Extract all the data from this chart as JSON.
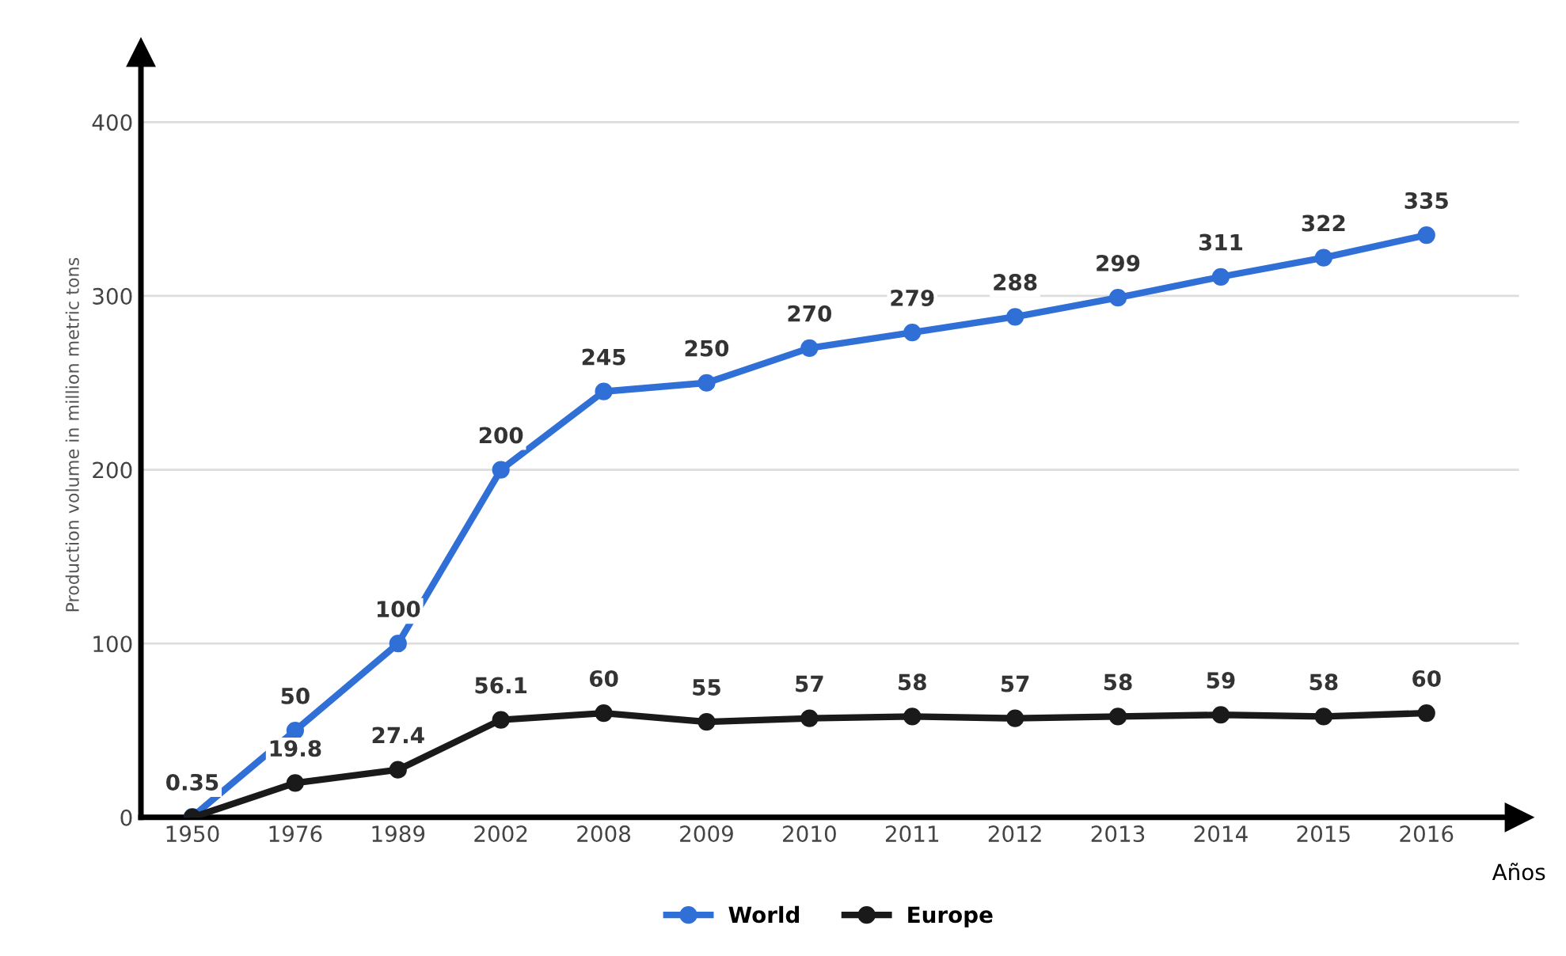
{
  "chart_data": {
    "type": "line",
    "xlabel": "Años",
    "ylabel": "Production volume in million metric tons",
    "categories": [
      "1950",
      "1976",
      "1989",
      "2002",
      "2008",
      "2009",
      "2010",
      "2011",
      "2012",
      "2013",
      "2014",
      "2015",
      "2016"
    ],
    "series": [
      {
        "name": "World",
        "color": "#2f6fd6",
        "values": [
          0.35,
          50,
          100,
          200,
          245,
          250,
          270,
          279,
          288,
          299,
          311,
          322,
          335
        ],
        "value_labels": [
          "0.35",
          "50",
          "100",
          "200",
          "245",
          "250",
          "270",
          "279",
          "288",
          "299",
          "311",
          "322",
          "335"
        ]
      },
      {
        "name": "Europe",
        "color": "#1a1a1a",
        "values": [
          0,
          19.8,
          27.4,
          56.1,
          60,
          55,
          57,
          58,
          57,
          58,
          59,
          58,
          60
        ],
        "value_labels": [
          null,
          "19.8",
          "27.4",
          "56.1",
          "60",
          "55",
          "57",
          "58",
          "57",
          "58",
          "59",
          "58",
          "60"
        ]
      }
    ],
    "ylim": [
      0,
      440
    ],
    "yticks": [
      0,
      100,
      200,
      300,
      400
    ],
    "grid": "y",
    "legend": "bottom",
    "marker": "circle",
    "line_style": "solid"
  }
}
